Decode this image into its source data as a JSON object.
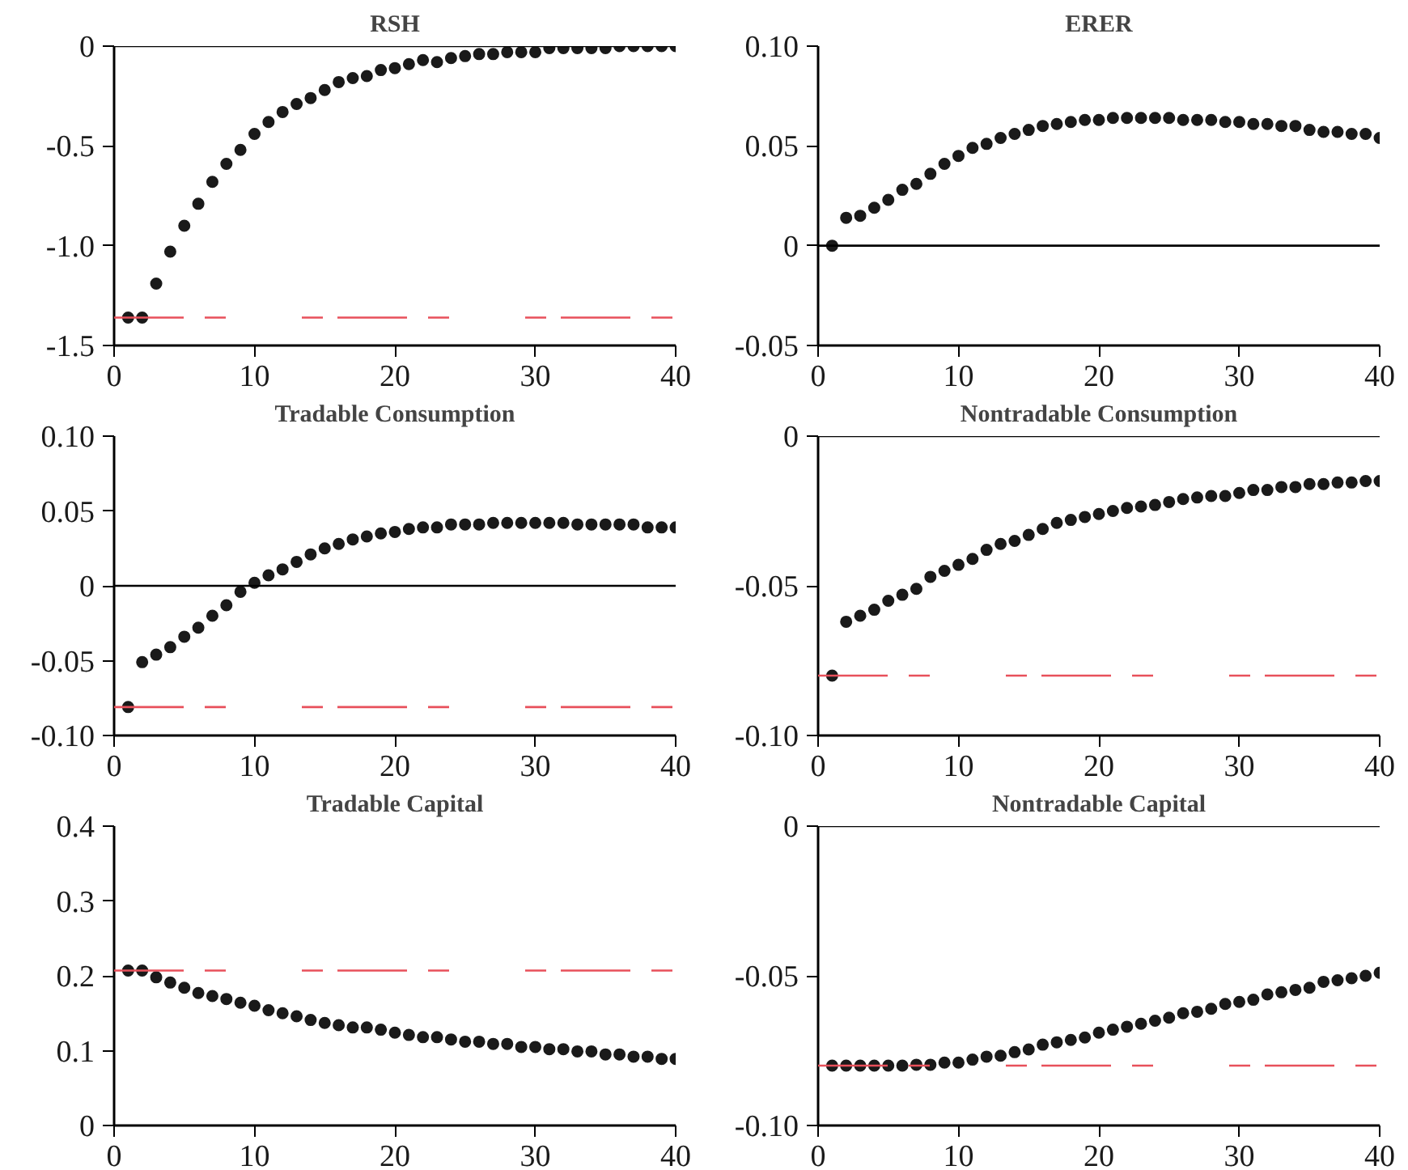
{
  "chart_data": [
    {
      "type": "scatter",
      "title": "RSH",
      "marker": "circle",
      "grid": false,
      "x": [
        1,
        2,
        3,
        4,
        5,
        6,
        7,
        8,
        9,
        10,
        11,
        12,
        13,
        14,
        15,
        16,
        17,
        18,
        19,
        20,
        21,
        22,
        23,
        24,
        25,
        26,
        27,
        28,
        29,
        30,
        31,
        32,
        33,
        34,
        35,
        36,
        37,
        38,
        39,
        40
      ],
      "series": [
        {
          "color": "#1a1a1a",
          "values": [
            -1.36,
            -1.36,
            -1.19,
            -1.03,
            -0.9,
            -0.79,
            -0.68,
            -0.59,
            -0.52,
            -0.44,
            -0.38,
            -0.33,
            -0.29,
            -0.26,
            -0.22,
            -0.18,
            -0.16,
            -0.15,
            -0.12,
            -0.11,
            -0.09,
            -0.07,
            -0.08,
            -0.06,
            -0.05,
            -0.04,
            -0.04,
            -0.03,
            -0.03,
            -0.03,
            -0.01,
            -0.01,
            -0.01,
            -0.01,
            -0.01,
            0,
            0,
            0,
            0,
            0
          ]
        }
      ],
      "xlim": [
        0,
        40
      ],
      "xticks": [
        0,
        10,
        20,
        30,
        40
      ],
      "ylim": [
        -1.5,
        0
      ],
      "yticks": [
        {
          "value": -1.5,
          "label": "-1.5"
        },
        {
          "value": -1.0,
          "label": "-1.0"
        },
        {
          "value": -0.5,
          "label": "-0.5"
        },
        0
      ],
      "ref_lines": [
        {
          "axis": "y",
          "value": 0,
          "color": "#000000",
          "line_style": "solid"
        },
        {
          "axis": "y",
          "value": -1.36,
          "color": "#e8505b",
          "line_style": "dashed"
        }
      ]
    },
    {
      "type": "scatter",
      "title": "ERER",
      "marker": "circle",
      "grid": false,
      "x": [
        1,
        2,
        3,
        4,
        5,
        6,
        7,
        8,
        9,
        10,
        11,
        12,
        13,
        14,
        15,
        16,
        17,
        18,
        19,
        20,
        21,
        22,
        23,
        24,
        25,
        26,
        27,
        28,
        29,
        30,
        31,
        32,
        33,
        34,
        35,
        36,
        37,
        38,
        39,
        40
      ],
      "series": [
        {
          "color": "#1a1a1a",
          "values": [
            0,
            0.014,
            0.015,
            0.019,
            0.023,
            0.028,
            0.031,
            0.036,
            0.041,
            0.045,
            0.049,
            0.051,
            0.054,
            0.056,
            0.058,
            0.06,
            0.061,
            0.062,
            0.063,
            0.063,
            0.064,
            0.064,
            0.064,
            0.064,
            0.064,
            0.063,
            0.063,
            0.063,
            0.062,
            0.062,
            0.061,
            0.061,
            0.06,
            0.06,
            0.058,
            0.057,
            0.057,
            0.056,
            0.056,
            0.054
          ]
        }
      ],
      "xlim": [
        0,
        40
      ],
      "xticks": [
        0,
        10,
        20,
        30,
        40
      ],
      "ylim": [
        -0.05,
        0.1
      ],
      "yticks": [
        {
          "value": -0.05,
          "label": "-0.05"
        },
        0,
        {
          "value": 0.05,
          "label": "0.05"
        },
        {
          "value": 0.1,
          "label": "0.10"
        }
      ],
      "ref_lines": [
        {
          "axis": "y",
          "value": 0,
          "color": "#000000",
          "line_style": "solid"
        }
      ]
    },
    {
      "type": "scatter",
      "title": "Tradable Consumption",
      "marker": "circle",
      "grid": false,
      "x": [
        1,
        2,
        3,
        4,
        5,
        6,
        7,
        8,
        9,
        10,
        11,
        12,
        13,
        14,
        15,
        16,
        17,
        18,
        19,
        20,
        21,
        22,
        23,
        24,
        25,
        26,
        27,
        28,
        29,
        30,
        31,
        32,
        33,
        34,
        35,
        36,
        37,
        38,
        39,
        40
      ],
      "series": [
        {
          "color": "#1a1a1a",
          "values": [
            -0.081,
            -0.051,
            -0.046,
            -0.041,
            -0.034,
            -0.028,
            -0.02,
            -0.013,
            -0.004,
            0.002,
            0.007,
            0.011,
            0.016,
            0.021,
            0.025,
            0.028,
            0.031,
            0.033,
            0.035,
            0.036,
            0.038,
            0.039,
            0.039,
            0.041,
            0.041,
            0.041,
            0.042,
            0.042,
            0.042,
            0.042,
            0.042,
            0.042,
            0.041,
            0.041,
            0.041,
            0.041,
            0.041,
            0.039,
            0.039,
            0.039
          ]
        }
      ],
      "xlim": [
        0,
        40
      ],
      "xticks": [
        0,
        10,
        20,
        30,
        40
      ],
      "ylim": [
        -0.1,
        0.1
      ],
      "yticks": [
        {
          "value": -0.1,
          "label": "-0.10"
        },
        {
          "value": -0.05,
          "label": "-0.05"
        },
        0,
        {
          "value": 0.05,
          "label": "0.05"
        },
        {
          "value": 0.1,
          "label": "0.10"
        }
      ],
      "ref_lines": [
        {
          "axis": "y",
          "value": 0,
          "color": "#000000",
          "line_style": "solid"
        },
        {
          "axis": "y",
          "value": -0.081,
          "color": "#e8505b",
          "line_style": "dashed"
        }
      ]
    },
    {
      "type": "scatter",
      "title": "Nontradable Consumption",
      "marker": "circle",
      "grid": false,
      "x": [
        1,
        2,
        3,
        4,
        5,
        6,
        7,
        8,
        9,
        10,
        11,
        12,
        13,
        14,
        15,
        16,
        17,
        18,
        19,
        20,
        21,
        22,
        23,
        24,
        25,
        26,
        27,
        28,
        29,
        30,
        31,
        32,
        33,
        34,
        35,
        36,
        37,
        38,
        39,
        40
      ],
      "series": [
        {
          "color": "#1a1a1a",
          "values": [
            -0.08,
            -0.062,
            -0.06,
            -0.058,
            -0.055,
            -0.053,
            -0.051,
            -0.047,
            -0.045,
            -0.043,
            -0.041,
            -0.038,
            -0.036,
            -0.035,
            -0.033,
            -0.031,
            -0.029,
            -0.028,
            -0.027,
            -0.026,
            -0.025,
            -0.024,
            -0.0235,
            -0.023,
            -0.022,
            -0.021,
            -0.0205,
            -0.02,
            -0.02,
            -0.019,
            -0.018,
            -0.018,
            -0.017,
            -0.017,
            -0.016,
            -0.016,
            -0.0155,
            -0.0155,
            -0.015,
            -0.015
          ]
        }
      ],
      "xlim": [
        0,
        40
      ],
      "xticks": [
        0,
        10,
        20,
        30,
        40
      ],
      "ylim": [
        -0.1,
        0
      ],
      "yticks": [
        {
          "value": -0.1,
          "label": "-0.10"
        },
        {
          "value": -0.05,
          "label": "-0.05"
        },
        0
      ],
      "ref_lines": [
        {
          "axis": "y",
          "value": 0,
          "color": "#000000",
          "line_style": "solid"
        },
        {
          "axis": "y",
          "value": -0.08,
          "color": "#e8505b",
          "line_style": "dashed"
        }
      ]
    },
    {
      "type": "scatter",
      "title": "Tradable Capital",
      "marker": "circle",
      "grid": false,
      "x": [
        1,
        2,
        3,
        4,
        5,
        6,
        7,
        8,
        9,
        10,
        11,
        12,
        13,
        14,
        15,
        16,
        17,
        18,
        19,
        20,
        21,
        22,
        23,
        24,
        25,
        26,
        27,
        28,
        29,
        30,
        31,
        32,
        33,
        34,
        35,
        36,
        37,
        38,
        39,
        40
      ],
      "series": [
        {
          "color": "#1a1a1a",
          "values": [
            0.207,
            0.207,
            0.198,
            0.191,
            0.184,
            0.177,
            0.173,
            0.169,
            0.164,
            0.16,
            0.154,
            0.15,
            0.146,
            0.141,
            0.137,
            0.134,
            0.131,
            0.131,
            0.128,
            0.124,
            0.121,
            0.118,
            0.118,
            0.115,
            0.112,
            0.112,
            0.109,
            0.109,
            0.105,
            0.105,
            0.102,
            0.102,
            0.099,
            0.099,
            0.095,
            0.095,
            0.092,
            0.092,
            0.089,
            0.089
          ]
        }
      ],
      "xlim": [
        0,
        40
      ],
      "xticks": [
        0,
        10,
        20,
        30,
        40
      ],
      "ylim": [
        0,
        0.4
      ],
      "yticks": [
        0,
        0.1,
        0.2,
        0.3,
        0.4
      ],
      "ref_lines": [
        {
          "axis": "y",
          "value": 0.207,
          "color": "#e8505b",
          "line_style": "dashed"
        }
      ]
    },
    {
      "type": "scatter",
      "title": "Nontradable Capital",
      "marker": "circle",
      "grid": false,
      "x": [
        1,
        2,
        3,
        4,
        5,
        6,
        7,
        8,
        9,
        10,
        11,
        12,
        13,
        14,
        15,
        16,
        17,
        18,
        19,
        20,
        21,
        22,
        23,
        24,
        25,
        26,
        27,
        28,
        29,
        30,
        31,
        32,
        33,
        34,
        35,
        36,
        37,
        38,
        39,
        40
      ],
      "series": [
        {
          "color": "#1a1a1a",
          "values": [
            -0.08,
            -0.08,
            -0.08,
            -0.08,
            -0.08,
            -0.08,
            -0.0797,
            -0.0797,
            -0.079,
            -0.079,
            -0.078,
            -0.077,
            -0.0767,
            -0.0755,
            -0.0746,
            -0.073,
            -0.0722,
            -0.0714,
            -0.0706,
            -0.069,
            -0.068,
            -0.067,
            -0.066,
            -0.065,
            -0.064,
            -0.0625,
            -0.062,
            -0.061,
            -0.0594,
            -0.0587,
            -0.058,
            -0.0562,
            -0.0555,
            -0.0547,
            -0.054,
            -0.052,
            -0.0515,
            -0.0508,
            -0.05,
            -0.049
          ]
        }
      ],
      "xlim": [
        0,
        40
      ],
      "xticks": [
        0,
        10,
        20,
        30,
        40
      ],
      "ylim": [
        -0.1,
        0
      ],
      "yticks": [
        {
          "value": -0.1,
          "label": "-0.10"
        },
        {
          "value": -0.05,
          "label": "-0.05"
        },
        0
      ],
      "ref_lines": [
        {
          "axis": "y",
          "value": 0,
          "color": "#000000",
          "line_style": "solid"
        },
        {
          "axis": "y",
          "value": -0.08,
          "color": "#e8505b",
          "line_style": "dashed"
        }
      ]
    }
  ]
}
